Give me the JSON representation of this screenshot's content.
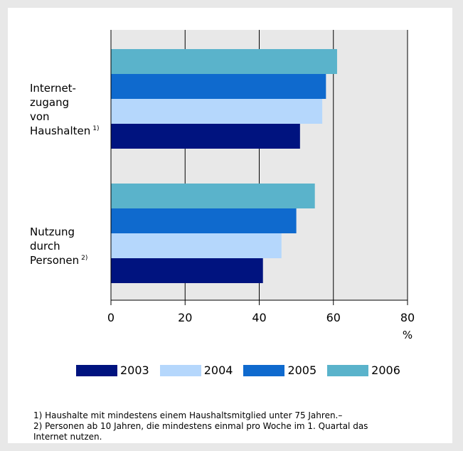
{
  "chart_data": {
    "type": "bar",
    "orientation": "horizontal",
    "categories": [
      {
        "label": "Internet-\nzugang\nvon\nHaushalten",
        "footnote": "1)"
      },
      {
        "label": "Nutzung\ndurch\nPersonen",
        "footnote": "2)"
      }
    ],
    "series": [
      {
        "name": "2003",
        "color": "#00137f",
        "values": [
          51,
          41
        ]
      },
      {
        "name": "2004",
        "color": "#b5d7fc",
        "values": [
          57,
          46
        ]
      },
      {
        "name": "2005",
        "color": "#0f6ace",
        "values": [
          58,
          50
        ]
      },
      {
        "name": "2006",
        "color": "#5ab3cb",
        "values": [
          61,
          55
        ]
      }
    ],
    "xlim": [
      0,
      80
    ],
    "xticks": [
      "0",
      "20",
      "40",
      "60",
      "80"
    ],
    "xlabel": "%",
    "grid": true,
    "plot_background": "#e8e8e8",
    "legend_position": "bottom"
  },
  "footnotes": [
    "1) Haushalte mit mindestens einem Haushaltsmitglied unter 75 Jahren.–",
    "2) Personen ab 10 Jahren, die mindestens einmal pro Woche im 1. Quartal das",
    "Internet nutzen."
  ]
}
